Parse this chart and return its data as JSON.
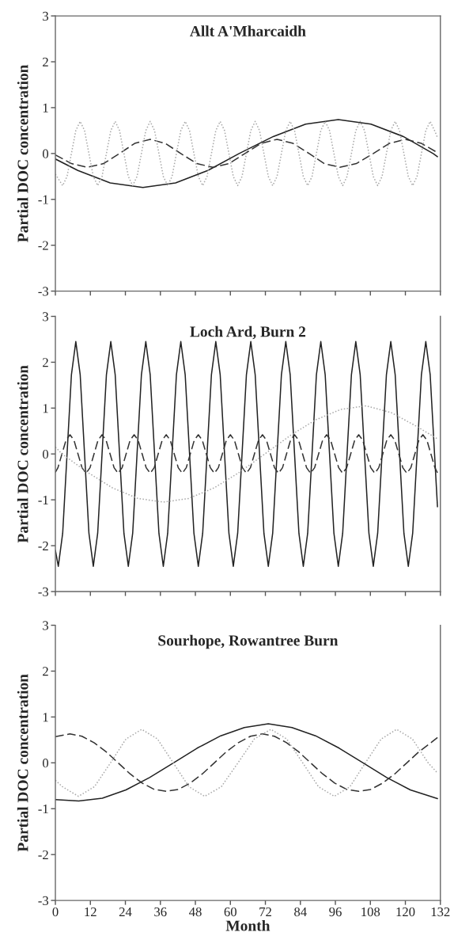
{
  "chart_data": [
    {
      "type": "line",
      "title": "Allt A'Mharcaidh",
      "ylabel": "Partial DOC concentration",
      "xlim": [
        0,
        132
      ],
      "xticks": [
        0,
        12,
        24,
        36,
        48,
        60,
        72,
        84,
        96,
        108,
        120,
        132
      ],
      "ylim": [
        -3,
        3
      ],
      "yticks": [
        -3,
        -2,
        -1,
        0,
        1,
        2,
        3
      ],
      "tick_labels": "y",
      "grid": false,
      "series": [
        {
          "color": "#222222",
          "line_style": "solid",
          "x": [
            0,
            7.7,
            18.8,
            30,
            41.2,
            52.3,
            63,
            74.7,
            85.8,
            97,
            108.2,
            119.3,
            129.5,
            131
          ],
          "values": [
            -0.12,
            -0.37,
            -0.64,
            -0.74,
            -0.64,
            -0.37,
            0,
            0.37,
            0.64,
            0.74,
            0.64,
            0.37,
            0,
            -0.07
          ]
        },
        {
          "color": "#333333",
          "line_style": "dashed",
          "x": [
            0,
            5.5,
            11,
            16.5,
            22,
            27.2,
            32.5,
            37.7,
            43,
            48.5,
            54,
            59.5,
            65,
            70.5,
            76,
            81.5,
            87,
            92.2,
            97.5,
            103.2,
            109,
            114.5,
            120,
            125.5,
            131
          ],
          "values": [
            -0.03,
            -0.22,
            -0.3,
            -0.22,
            0,
            0.22,
            0.31,
            0.22,
            0,
            -0.22,
            -0.3,
            -0.22,
            0,
            0.22,
            0.31,
            0.22,
            0,
            -0.22,
            -0.3,
            -0.22,
            0,
            0.22,
            0.31,
            0.22,
            0.02
          ]
        },
        {
          "color": "#a8a8a8",
          "line_style": "dotted",
          "x": [
            0,
            2.5,
            4,
            5.5,
            7,
            8.5,
            10,
            11.5,
            13,
            14.5,
            16,
            17.5,
            19,
            20.5,
            22,
            23.5,
            25,
            26.5,
            28,
            29.5,
            31,
            32.5,
            34,
            35.5,
            37,
            38.5,
            40,
            41.5,
            43,
            44.5,
            46,
            47.5,
            49,
            50.5,
            52,
            53.5,
            55,
            56.5,
            58,
            59.5,
            61,
            62.5,
            64,
            65.5,
            67,
            68.5,
            70,
            71.5,
            73,
            74.5,
            76,
            77.5,
            79,
            80.5,
            82,
            83.5,
            85,
            86.5,
            88,
            89.5,
            91,
            92.5,
            94,
            95.5,
            97,
            98.5,
            100,
            101.5,
            103,
            104.5,
            106,
            107.5,
            109,
            110.5,
            112,
            113.5,
            115,
            116.5,
            118,
            119.5,
            121,
            122.5,
            124,
            125.5,
            127,
            128.5,
            130,
            131
          ],
          "values": [
            -0.45,
            -0.7,
            -0.5,
            0,
            0.5,
            0.7,
            0.5,
            0,
            -0.5,
            -0.7,
            -0.5,
            0,
            0.5,
            0.7,
            0.5,
            0,
            -0.5,
            -0.7,
            -0.5,
            0,
            0.5,
            0.7,
            0.5,
            0,
            -0.5,
            -0.7,
            -0.5,
            0,
            0.5,
            0.7,
            0.5,
            0,
            -0.5,
            -0.7,
            -0.5,
            0,
            0.5,
            0.7,
            0.5,
            0,
            -0.5,
            -0.7,
            -0.5,
            0,
            0.5,
            0.7,
            0.5,
            0,
            -0.5,
            -0.7,
            -0.5,
            0,
            0.5,
            0.7,
            0.5,
            0,
            -0.5,
            -0.7,
            -0.5,
            0,
            0.5,
            0.7,
            0.5,
            0,
            -0.5,
            -0.7,
            -0.5,
            0,
            0.5,
            0.7,
            0.5,
            0,
            -0.5,
            -0.7,
            -0.5,
            0,
            0.5,
            0.7,
            0.5,
            0,
            -0.5,
            -0.7,
            -0.5,
            0,
            0.5,
            0.7,
            0.5,
            0.35
          ]
        }
      ]
    },
    {
      "type": "line",
      "title": "Loch Ard, Burn 2",
      "ylabel": "Partial DOC concentration",
      "xlim": [
        0,
        132
      ],
      "xticks": [
        0,
        12,
        24,
        36,
        48,
        60,
        72,
        84,
        96,
        108,
        120,
        132
      ],
      "ylim": [
        -3,
        3
      ],
      "yticks": [
        -3,
        -2,
        -1,
        0,
        1,
        2,
        3
      ],
      "tick_labels": "y",
      "grid": false,
      "series": [
        {
          "color": "#222222",
          "line_style": "solid",
          "x": [
            0,
            1,
            2.5,
            4,
            5.5,
            7,
            8.5,
            10,
            11.5,
            13,
            14.5,
            16,
            17.5,
            19,
            20.5,
            22,
            23.5,
            25,
            26.5,
            28,
            29.5,
            31,
            32.5,
            34,
            35.5,
            37,
            38.5,
            40,
            41.5,
            43,
            44.5,
            46,
            47.5,
            49,
            50.5,
            52,
            53.5,
            55,
            56.5,
            58,
            59.5,
            61,
            62.5,
            64,
            65.5,
            67,
            68.5,
            70,
            71.5,
            73,
            74.5,
            76,
            77.5,
            79,
            80.5,
            82,
            83.5,
            85,
            86.5,
            88,
            89.5,
            91,
            92.5,
            94,
            95.5,
            97,
            98.5,
            100,
            101.5,
            103,
            104.5,
            106,
            107.5,
            109,
            110.5,
            112,
            113.5,
            115,
            116.5,
            118,
            119.5,
            121,
            122.5,
            124,
            125.5,
            127,
            128.5,
            130,
            131
          ],
          "values": [
            -2.1,
            -2.45,
            -1.73,
            0,
            1.73,
            2.45,
            1.73,
            0,
            -1.73,
            -2.45,
            -1.73,
            0,
            1.73,
            2.45,
            1.73,
            0,
            -1.73,
            -2.45,
            -1.73,
            0,
            1.73,
            2.45,
            1.73,
            0,
            -1.73,
            -2.45,
            -1.73,
            0,
            1.73,
            2.45,
            1.73,
            0,
            -1.73,
            -2.45,
            -1.73,
            0,
            1.73,
            2.45,
            1.73,
            0,
            -1.73,
            -2.45,
            -1.73,
            0,
            1.73,
            2.45,
            1.73,
            0,
            -1.73,
            -2.45,
            -1.73,
            0,
            1.73,
            2.45,
            1.73,
            0,
            -1.73,
            -2.45,
            -1.73,
            0,
            1.73,
            2.45,
            1.73,
            0,
            -1.73,
            -2.45,
            -1.73,
            0,
            1.73,
            2.45,
            1.73,
            0,
            -1.73,
            -2.45,
            -1.73,
            0,
            1.73,
            2.45,
            1.73,
            0,
            -1.73,
            -2.45,
            -1.73,
            0,
            1.73,
            2.45,
            1.73,
            0,
            -1.15
          ]
        },
        {
          "color": "#333333",
          "line_style": "dashed",
          "x": [
            0,
            0.875,
            2.25,
            3.625,
            5,
            6.375,
            7.75,
            9.125,
            10.5,
            11.875,
            13.25,
            14.625,
            16,
            17.375,
            18.75,
            20.125,
            21.5,
            22.875,
            24.25,
            25.625,
            27,
            28.375,
            29.75,
            31.125,
            32.5,
            33.875,
            35.25,
            36.625,
            38,
            39.375,
            40.75,
            42.125,
            43.5,
            44.875,
            46.25,
            47.625,
            49,
            50.375,
            51.75,
            53.125,
            54.5,
            55.875,
            57.25,
            58.625,
            60,
            61.375,
            62.75,
            64.125,
            65.5,
            66.875,
            68.25,
            69.625,
            71,
            72.375,
            73.75,
            75.125,
            76.5,
            77.875,
            79.25,
            80.625,
            82,
            83.375,
            84.75,
            86.125,
            87.5,
            88.875,
            90.25,
            91.625,
            93,
            94.375,
            95.75,
            97.125,
            98.5,
            99.875,
            101.25,
            102.625,
            104,
            105.375,
            106.75,
            108.125,
            109.5,
            110.875,
            112.25,
            113.625,
            115,
            116.375,
            117.75,
            119.125,
            120.5,
            121.875,
            123.25,
            124.625,
            126,
            127.375,
            128.75,
            130.125,
            131
          ],
          "values": [
            -0.4,
            -0.3,
            0,
            0.3,
            0.42,
            0.3,
            0,
            -0.3,
            -0.42,
            -0.3,
            0,
            0.3,
            0.42,
            0.3,
            0,
            -0.3,
            -0.42,
            -0.3,
            0,
            0.3,
            0.42,
            0.3,
            0,
            -0.3,
            -0.42,
            -0.3,
            0,
            0.3,
            0.42,
            0.3,
            0,
            -0.3,
            -0.42,
            -0.3,
            0,
            0.3,
            0.42,
            0.3,
            0,
            -0.3,
            -0.42,
            -0.3,
            0,
            0.3,
            0.42,
            0.3,
            0,
            -0.3,
            -0.42,
            -0.3,
            0,
            0.3,
            0.42,
            0.3,
            0,
            -0.3,
            -0.42,
            -0.3,
            0,
            0.3,
            0.42,
            0.3,
            0,
            -0.3,
            -0.42,
            -0.3,
            0,
            0.3,
            0.42,
            0.3,
            0,
            -0.3,
            -0.42,
            -0.3,
            0,
            0.3,
            0.42,
            0.3,
            0,
            -0.3,
            -0.42,
            -0.3,
            0,
            0.3,
            0.42,
            0.3,
            0,
            -0.3,
            -0.42,
            -0.3,
            0,
            0.3,
            0.42,
            0.3,
            0,
            -0.3,
            -0.41
          ]
        },
        {
          "color": "#a8a8a8",
          "line_style": "dotted",
          "x": [
            0,
            2.3,
            11,
            19.6,
            28.3,
            37,
            45.7,
            54.4,
            63.1,
            71.8,
            80.5,
            89.1,
            97.8,
            106.5,
            115.2,
            123.9,
            131
          ],
          "values": [
            0.15,
            0,
            -0.4,
            -0.74,
            -0.97,
            -1.05,
            -0.97,
            -0.74,
            -0.4,
            0,
            0.4,
            0.74,
            0.97,
            1.05,
            0.9,
            0.6,
            0.33
          ]
        }
      ]
    },
    {
      "type": "line",
      "title": "Sourhope, Rowantree Burn",
      "xlabel": "Month",
      "ylabel": "Partial DOC concentration",
      "xlim": [
        0,
        132
      ],
      "xticks": [
        0,
        12,
        24,
        36,
        48,
        60,
        72,
        84,
        96,
        108,
        120,
        132
      ],
      "ylim": [
        -3,
        3
      ],
      "yticks": [
        -3,
        -2,
        -1,
        0,
        1,
        2,
        3
      ],
      "grid": false,
      "series": [
        {
          "color": "#222222",
          "line_style": "solid",
          "x": [
            0,
            8,
            16.1,
            24.2,
            32.3,
            40.5,
            48.6,
            56.7,
            64.8,
            73,
            81.1,
            89.2,
            97.3,
            105.5,
            113.6,
            121.7,
            131
          ],
          "values": [
            -0.8,
            -0.83,
            -0.77,
            -0.59,
            -0.32,
            0,
            0.32,
            0.59,
            0.77,
            0.85,
            0.77,
            0.59,
            0.32,
            0,
            -0.32,
            -0.59,
            -0.78
          ]
        },
        {
          "color": "#333333",
          "line_style": "dashed",
          "x": [
            0,
            5,
            9.1,
            13.25,
            17.4,
            21.5,
            25.6,
            29.75,
            33.9,
            38,
            42.1,
            46.25,
            50.4,
            54.5,
            58.6,
            62.75,
            66.9,
            71,
            75.1,
            79.25,
            83.4,
            87.5,
            91.6,
            95.75,
            99.9,
            104,
            108.1,
            112.25,
            116.4,
            120.5,
            124.6,
            128.75,
            131
          ],
          "values": [
            0.57,
            0.63,
            0.58,
            0.44,
            0.24,
            0,
            -0.24,
            -0.44,
            -0.58,
            -0.62,
            -0.58,
            -0.44,
            -0.24,
            0,
            0.24,
            0.44,
            0.58,
            0.63,
            0.58,
            0.44,
            0.24,
            0,
            -0.24,
            -0.44,
            -0.58,
            -0.62,
            -0.58,
            -0.44,
            -0.24,
            0,
            0.24,
            0.44,
            0.55
          ]
        },
        {
          "color": "#a8a8a8",
          "line_style": "dotted",
          "x": [
            0,
            2.4,
            7.9,
            13.4,
            18.9,
            24.2,
            29.6,
            35,
            40.4,
            45.8,
            51.2,
            56.9,
            62.6,
            68.2,
            73.9,
            79.3,
            84.8,
            90.2,
            95.6,
            101,
            106.3,
            111.7,
            117,
            122.4,
            127.8,
            131
          ],
          "values": [
            -0.38,
            -0.52,
            -0.73,
            -0.52,
            0,
            0.52,
            0.73,
            0.52,
            0,
            -0.52,
            -0.73,
            -0.52,
            0,
            0.52,
            0.73,
            0.52,
            0,
            -0.52,
            -0.73,
            -0.52,
            0,
            0.52,
            0.73,
            0.52,
            0,
            -0.22
          ]
        }
      ]
    }
  ]
}
